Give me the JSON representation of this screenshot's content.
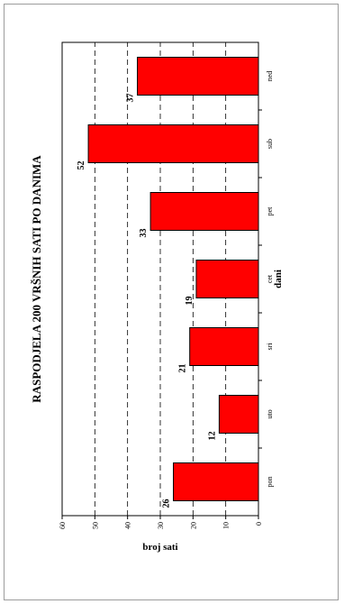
{
  "chart_data": {
    "type": "bar",
    "title": "RASPODJELA 200 VRŠNIH SATI PO DANIMA",
    "xlabel": "dani",
    "ylabel": "broj sati",
    "categories": [
      "pon",
      "uto",
      "sri",
      "cet",
      "pet",
      "sub",
      "ned"
    ],
    "series": [
      {
        "values": [
          26,
          12,
          21,
          19,
          33,
          52,
          37
        ],
        "color": "#ff0000"
      }
    ],
    "data_labels": [
      "26",
      "12",
      "21",
      "19",
      "33",
      "52",
      "37"
    ],
    "ylim": [
      0,
      60
    ],
    "yticks": [
      0,
      10,
      20,
      30,
      40,
      50,
      60
    ],
    "grid": "dashed horizontal",
    "orientation": "rotated 90° counter-clockwise",
    "legend": "none"
  },
  "colors": {
    "bar": "#ff0000",
    "bar_stroke": "#000000",
    "frame": "#9c9c9c"
  }
}
